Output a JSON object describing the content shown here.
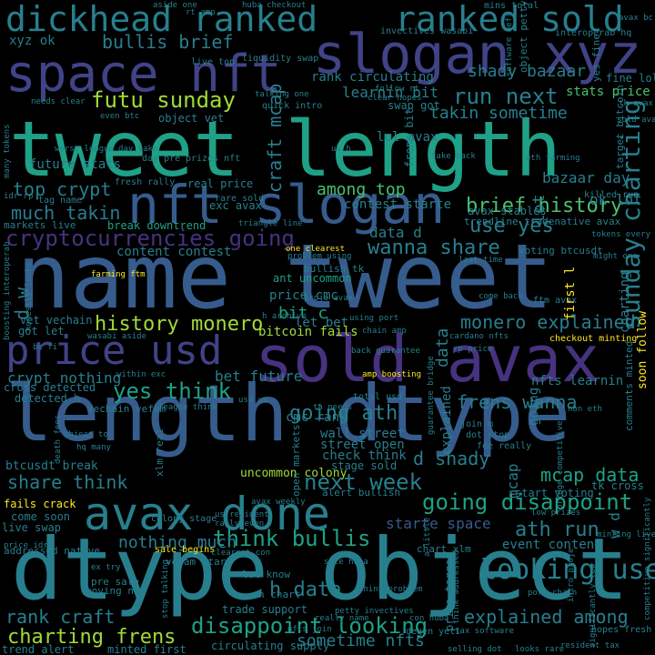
{
  "palette": {
    "purple": "#46327e",
    "indigo": "#404387",
    "blue": "#365c8d",
    "steel": "#277f8e",
    "teal": "#1fa187",
    "green": "#4ac16d",
    "lime": "#a0da39",
    "yellow": "#fde725",
    "background": "#000000"
  },
  "words": {
    "tweet_length": "tweet length",
    "name_tweet": "name tweet",
    "length_dtype": "length dtype",
    "dtype_object": "dtype object",
    "sold_avax": "sold avax",
    "nft_slogan": "nft slogan",
    "space_nft": "space nft",
    "slogan_xyz": "slogan xyz",
    "dickhead_ranked": "dickhead ranked",
    "ranked_sold": "ranked sold",
    "avax_done": "avax done",
    "price_usd": "price usd",
    "cryptocurrencies_going": "cryptocurrencies going",
    "going_disappoint": "going disappoint",
    "disappoint_looking": "disappoint looking",
    "next_week": "next week",
    "going_ath": "going ath",
    "charting_frens": "charting frens",
    "sunday_charting": "sunday charting",
    "brief_history": "brief history",
    "history_monero": "history monero",
    "monero_explained": "monero explained",
    "futu_sunday": "futu sunday",
    "bullis_brief": "bullis brief",
    "run_next": "run next",
    "looking_use": "looking use",
    "mcap_data": "mcap data",
    "think_bullis": "think bullis",
    "yes_think": "yes think",
    "frens_wanna": "frens wanna",
    "wanna_share": "wanna share",
    "much_takin": "much takin",
    "use_yes": "use yes",
    "d_shady": "d shady",
    "ath_run": "ath run",
    "share_think": "share think",
    "rank_craft": "rank craft",
    "explained_among": "explained among",
    "nothing_much": "nothing much",
    "sometime_nfts": "sometime nfts",
    "h_data": "h data",
    "top_crypt": "top crypt",
    "craft_mcap": "craft mcap",
    "among_top": "among top",
    "takin_sometime": "takin sometime",
    "shady_bazaar": "shady bazaar",
    "learnin_bit": "learnin bit",
    "stats_price": "stats price",
    "nfts_learnin": "nfts learnin",
    "bit_c": "bit c",
    "content_contest": "content contest",
    "contest_starte": "contest starte",
    "crypt_nothing": "crypt nothing",
    "bet_future": "bet future",
    "object_vet": "object vet",
    "future_stats": "future stats",
    "xyz_ok": "xyz ok",
    "data_d": "data d",
    "bazaar_day": "bazaar day",
    "ok_lot": "ok lot",
    "charting": "charting",
    "rank_circulating": "rank circulating",
    "d_w": "d w",
    "w_d": "w d",
    "frens_bit": "frens bit",
    "explained": "explained",
    "lot": "lot",
    "starte_space": "starte space",
    "wall_street": "wall street",
    "street_open": "street open",
    "check_think": "check think",
    "cmc_rank": "cmc rank",
    "stage_sold": "stage sold",
    "let_bet": "let bet",
    "price_cmc": "price cmc",
    "uncommon_colony": "uncommon colony",
    "event_content": "event content",
    "start_voting": "start voting",
    "tk_cross": "tk cross",
    "mcap": "mcap",
    "data": "data",
    "ant_uncommon": "ant uncommon",
    "going": "going",
    "bitcoin_fails": "bitcoin fails",
    "first_l": "first l",
    "soon_follow": "soon follow",
    "lol_avax": "lol avax",
    "come_soon": "come soon",
    "live_swap": "live swap",
    "fails_crack": "fails crack",
    "btcusdt_break": "btcusdt break",
    "cross_detected": "cross detected",
    "detected_h": "detected h",
    "vet_vechain": "vet vechain",
    "got_let": "got let",
    "break_downtrend": "break downtrend",
    "exc_avax": "exc avax",
    "real_price": "real price",
    "swap_got": "swap got",
    "quick_intro": "quick intro",
    "liquidity_swap": "liquidity swap",
    "avax_stables": "avax stables",
    "trendline_tradenative": "trendline tradenative avax",
    "voting_btcusdt": "voting btcusdt",
    "fine_lol": "fine lol",
    "comments_minted": "comments minted",
    "bullish_tk": "bullish tk",
    "alert_bullish": "alert bullish",
    "total_usd": "total usd",
    "fee_really": "fee really",
    "dot_stop": "dot stop",
    "join_m": "join m",
    "trade_support": "trade support",
    "circulating_supply": "circulating supply",
    "minted_first": "minted first",
    "trend_alert": "trend alert",
    "addressed_native": "addressed native",
    "pre_sale": "pre sale",
    "moving_non": "moving non",
    "sale_begins": "sale begins",
    "price_target": "price target",
    "hopes_fresh": "hopes fresh",
    "degen_yeti": "degen yeti",
    "yes_fine": "yes fine",
    "killed_run": "killed run",
    "fresh_rally": "fresh rally",
    "live_top": "live top",
    "day_pre": "day pre",
    "prizes_nft": "prizes nft",
    "rare_sold": "rare sold",
    "tag_name": "tag name",
    "markets_live": "markets live",
    "one_clearest": "one clearest",
    "problem_using": "problem using",
    "triangle_line": "triangle line",
    "farming_ftm": "farming ftm",
    "ftm_avax": "ftm avax",
    "come_back": "come back",
    "checkout_minting": "checkout minting",
    "h_archive": "h archive",
    "using_port": "using port",
    "vechain_vefam": "vechain vefam",
    "vefam_start": "vefam start",
    "open_markets": "open markets",
    "let_know": "let know",
    "h_chart": "h chart",
    "nfts_join": "nfts join",
    "really_name": "really name",
    "petty_invectives": "petty invectives",
    "chart_xlm": "chart xlm",
    "xlm_real": "xlm real",
    "port_chain": "port chain",
    "ex_try": "ex try",
    "target_bitcoin": "target bitcoin",
    "eth_farming": "eth farming",
    "take_back": "take back",
    "worst_league": "worst league",
    "clear_hopes": "clear hopes",
    "follow_rt": "follow rt",
    "invectives_wasabi": "invectives wasabi",
    "wasabi_aside": "wasabi aside",
    "interoperab_hq": "interoperab hq",
    "mins_total": "mins total",
    "rt_amp": "rt amp",
    "avax_bc": "avax bc",
    "huba_checkout": "huba checkout",
    "aside_one": "aside one",
    "object_petty": "object petty",
    "tokens_every": "tokens every",
    "might_one": "might one",
    "last_time": "last time",
    "tk_avax": "tk avax",
    "sold_avax_small": "sold avax",
    "bc_fi": "bc fi",
    "even_btc": "even btc",
    "needs_clear": "needs clear",
    "many_tokens": "many tokens",
    "idr_rp": "idr rp",
    "talking_one": "talking one",
    "honestly_looks": "honestly looks",
    "proje_avax": "proje avax",
    "cardano_nfts": "cardano nfts",
    "rp_price": "rp price",
    "non_eth": "non eth",
    "amp_boosting": "amp boosting",
    "back_guarantee": "back guarantee",
    "boosting_interoperab": "boosting interoperab",
    "chain_amp": "chain amp",
    "minting_live": "minting live",
    "rally_even": "rally even",
    "us_resident": "us resident",
    "resident_tax": "resident tax",
    "tax_software": "tax software",
    "selling_dot": "selling dot",
    "looks_rare": "looks rare",
    "clearest_con": "clearest con",
    "con_huba": "con huba",
    "colony_stage": "colony stage",
    "stop_talking": "stop talking",
    "hq_many": "hq many",
    "death_fees": "death fees",
    "within_exc": "within exc",
    "avax_weekly": "avax weekly",
    "league_think": "league think",
    "think_problem": "think problem",
    "low_prizes": "low prizes",
    "guarantee_bridge": "guarantee bridge",
    "competitive_significantly": "competitive significantly",
    "bridge_competitive": "bridge competitive",
    "significantly_low": "significantly low",
    "intro_proje": "intro proje",
    "software_defi": "software defi",
    "price_idr": "price idr",
    "usd_us": "usd us",
    "ta_needs": "ta needs",
    "think_addressed": "think addressed",
    "object_to": "object to",
    "day_take": "day take",
    "us_h": "us h",
    "a_little": "a little",
    "sale_huba": "sale huba"
  }
}
